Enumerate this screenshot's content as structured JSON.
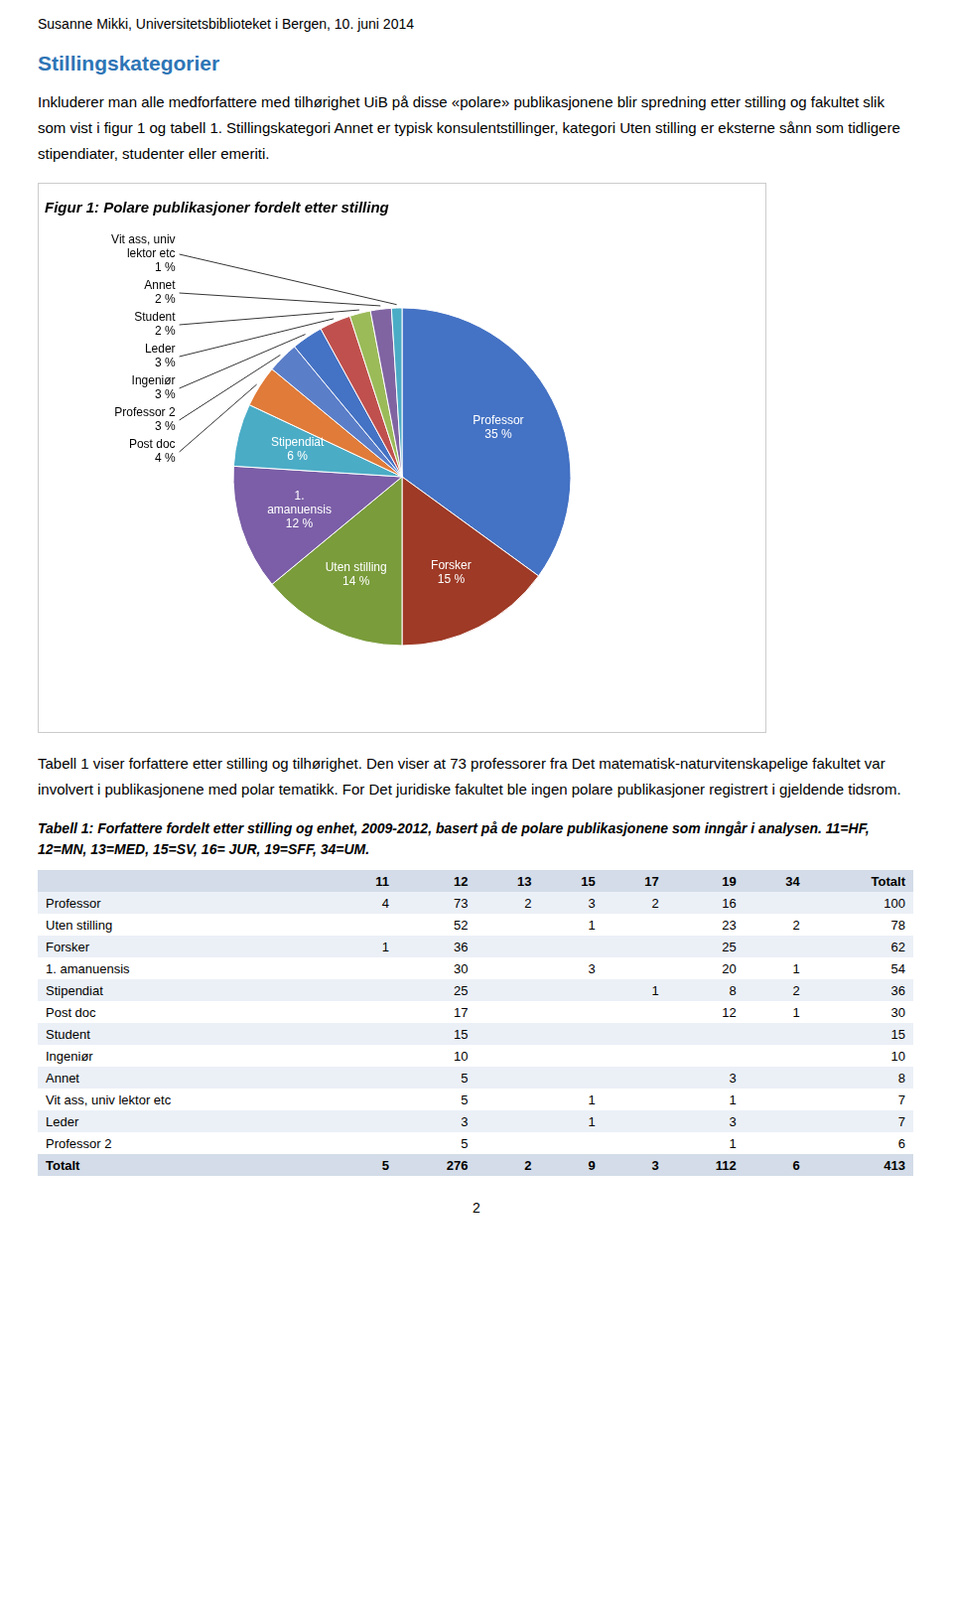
{
  "header": "Susanne Mikki, Universitetsbiblioteket i Bergen,  10. juni 2014",
  "section_title": "Stillingskategorier",
  "paragraphs_before": [
    "Inkluderer man alle medforfattere med tilhørighet UiB på disse «polare» publikasjonene blir spredning etter stilling og fakultet slik som vist i figur 1 og tabell 1. Stillingskategori Annet er typisk konsulentstillinger, kategori Uten stilling er eksterne sånn som tidligere stipendiater, studenter eller emeriti."
  ],
  "chart_data": {
    "type": "pie",
    "title": "Figur 1: Polare publikasjoner fordelt etter stilling",
    "categories": [
      "Professor",
      "Forsker",
      "Uten stilling",
      "1.\namanuensis",
      "Stipendiat",
      "Post doc",
      "Professor 2",
      "Ingeniør",
      "Leder",
      "Student",
      "Annet",
      "Vit ass, univ\nlektor etc"
    ],
    "values": [
      35,
      15,
      14,
      12,
      6,
      4,
      3,
      3,
      3,
      2,
      2,
      1
    ],
    "value_labels": [
      "35 %",
      "15 %",
      "14 %",
      "12 %",
      "6 %",
      "4 %",
      "3 %",
      "3 %",
      "3 %",
      "2 %",
      "2 %",
      "1 %"
    ],
    "colors": [
      "#4472C4",
      "#9E3A26",
      "#7A9C3B",
      "#7B5EA7",
      "#4BACC6",
      "#E07B39",
      "#5B7EC9",
      "#4472C4",
      "#C0504D",
      "#9BBB59",
      "#8064A2",
      "#4BACC6"
    ],
    "data_labels": true,
    "legend": false
  },
  "paragraphs_after": [
    "Tabell 1 viser forfattere etter stilling og tilhørighet. Den viser at 73 professorer fra Det matematisk-naturvitenskapelige fakultet var involvert i publikasjonene med polar tematikk. For Det juridiske fakultet ble ingen polare publikasjoner registrert i gjeldende tidsrom."
  ],
  "table": {
    "title": "Tabell 1: Forfattere fordelt etter stilling og enhet, 2009-2012, basert på de polare publikasjonene som inngår i analysen. 11=HF, 12=MN, 13=MED, 15=SV, 16= JUR, 19=SFF, 34=UM.",
    "headers": [
      null,
      11,
      12,
      13,
      15,
      17,
      19,
      34,
      "Totalt"
    ],
    "rows": [
      [
        "Professor",
        4,
        73,
        2,
        3,
        2,
        16,
        null,
        100
      ],
      [
        "Uten stilling",
        null,
        52,
        null,
        1,
        null,
        23,
        2,
        78
      ],
      [
        "Forsker",
        1,
        36,
        null,
        null,
        null,
        25,
        null,
        62
      ],
      [
        "1. amanuensis",
        null,
        30,
        null,
        3,
        null,
        20,
        1,
        54
      ],
      [
        "Stipendiat",
        null,
        25,
        null,
        null,
        1,
        8,
        2,
        36
      ],
      [
        "Post doc",
        null,
        17,
        null,
        null,
        null,
        12,
        1,
        30
      ],
      [
        "Student",
        null,
        15,
        null,
        null,
        null,
        null,
        null,
        15
      ],
      [
        "Ingeniør",
        null,
        10,
        null,
        null,
        null,
        null,
        null,
        10
      ],
      [
        "Annet",
        null,
        5,
        null,
        null,
        null,
        3,
        null,
        8
      ],
      [
        "Vit ass, univ lektor etc",
        null,
        5,
        null,
        1,
        null,
        1,
        null,
        7
      ],
      [
        "Leder",
        null,
        3,
        null,
        1,
        null,
        3,
        null,
        7
      ],
      [
        "Professor 2",
        null,
        5,
        null,
        null,
        null,
        1,
        null,
        6
      ]
    ],
    "total": [
      "Totalt",
      5,
      276,
      2,
      9,
      3,
      112,
      6,
      413
    ]
  },
  "page_number": 2
}
